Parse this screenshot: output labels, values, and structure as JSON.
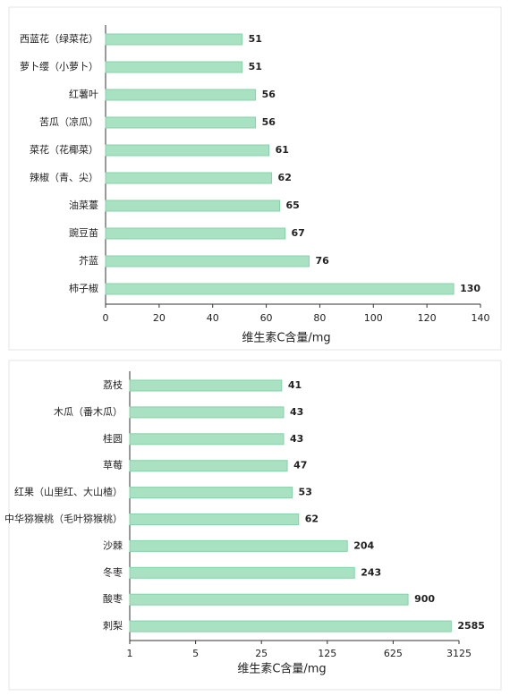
{
  "chart_data": [
    {
      "type": "bar",
      "orientation": "horizontal",
      "categories": [
        "西蓝花（绿菜花）",
        "萝卜缨（小萝卜）",
        "红薯叶",
        "苦瓜（凉瓜）",
        "菜花（花椰菜）",
        "辣椒（青、尖）",
        "油菜薹",
        "豌豆苗",
        "芥蓝",
        "柿子椒"
      ],
      "values": [
        51,
        51,
        56,
        56,
        61,
        62,
        65,
        67,
        76,
        130
      ],
      "color": "#a8e2c2",
      "xlabel": "维生素C含量/mg",
      "xlim": [
        0,
        140
      ],
      "xticks": [
        0,
        20,
        40,
        60,
        80,
        100,
        120,
        140
      ],
      "log_x": false
    },
    {
      "type": "bar",
      "orientation": "horizontal",
      "categories": [
        "荔枝",
        "木瓜（番木瓜）",
        "桂圆",
        "草莓",
        "红果（山里红、大山楂）",
        "中华猕猴桃（毛叶猕猴桃）",
        "沙棘",
        "冬枣",
        "酸枣",
        "刺梨"
      ],
      "values": [
        41,
        43,
        43,
        47,
        53,
        62,
        204,
        243,
        900,
        2585
      ],
      "color": "#a8e2c2",
      "xlabel": "维生素C含量/mg",
      "xlim": [
        1,
        3125
      ],
      "xticks": [
        1,
        5,
        25,
        125,
        625,
        3125
      ],
      "log_x": true
    }
  ]
}
